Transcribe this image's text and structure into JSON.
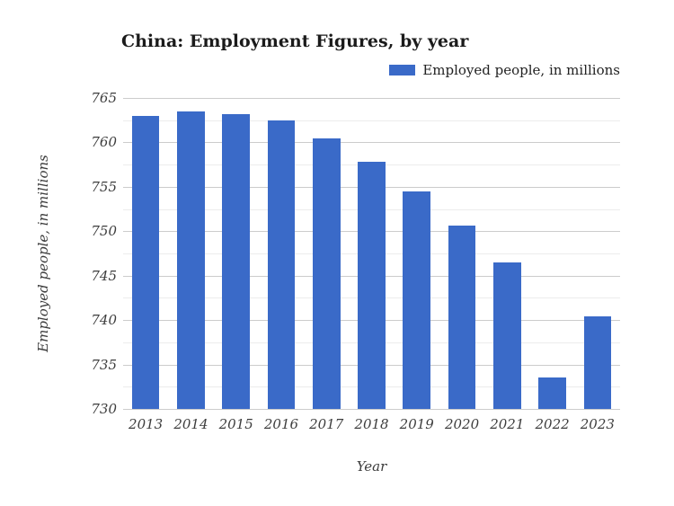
{
  "page": {
    "background": "#ffffff"
  },
  "header": {
    "title": "China: Employment Figures, by year",
    "legend": {
      "label": "Employed people, in millions",
      "swatch_color": "#3a6ac8"
    }
  },
  "chart_data": {
    "type": "bar",
    "title": "China: Employment Figures, by year",
    "xlabel": "Year",
    "ylabel": "Employed people, in millions",
    "categories": [
      "2013",
      "2014",
      "2015",
      "2016",
      "2017",
      "2018",
      "2019",
      "2020",
      "2021",
      "2022",
      "2023"
    ],
    "series": [
      {
        "name": "Employed people, in millions",
        "values": [
          763.0,
          763.5,
          763.2,
          762.5,
          760.5,
          757.8,
          754.5,
          750.6,
          746.5,
          733.5,
          740.4
        ]
      }
    ],
    "ylim": [
      730,
      765
    ],
    "yticks": [
      765,
      760,
      755,
      750,
      745,
      740,
      735,
      730
    ],
    "minor_grid_step": 2.5,
    "grid": true,
    "legend_position": "top-right",
    "bar_color": "#3a6ac8",
    "major_grid_color": "#cccccc",
    "minor_grid_color": "#ececec",
    "bar_band_fraction": 0.61
  }
}
